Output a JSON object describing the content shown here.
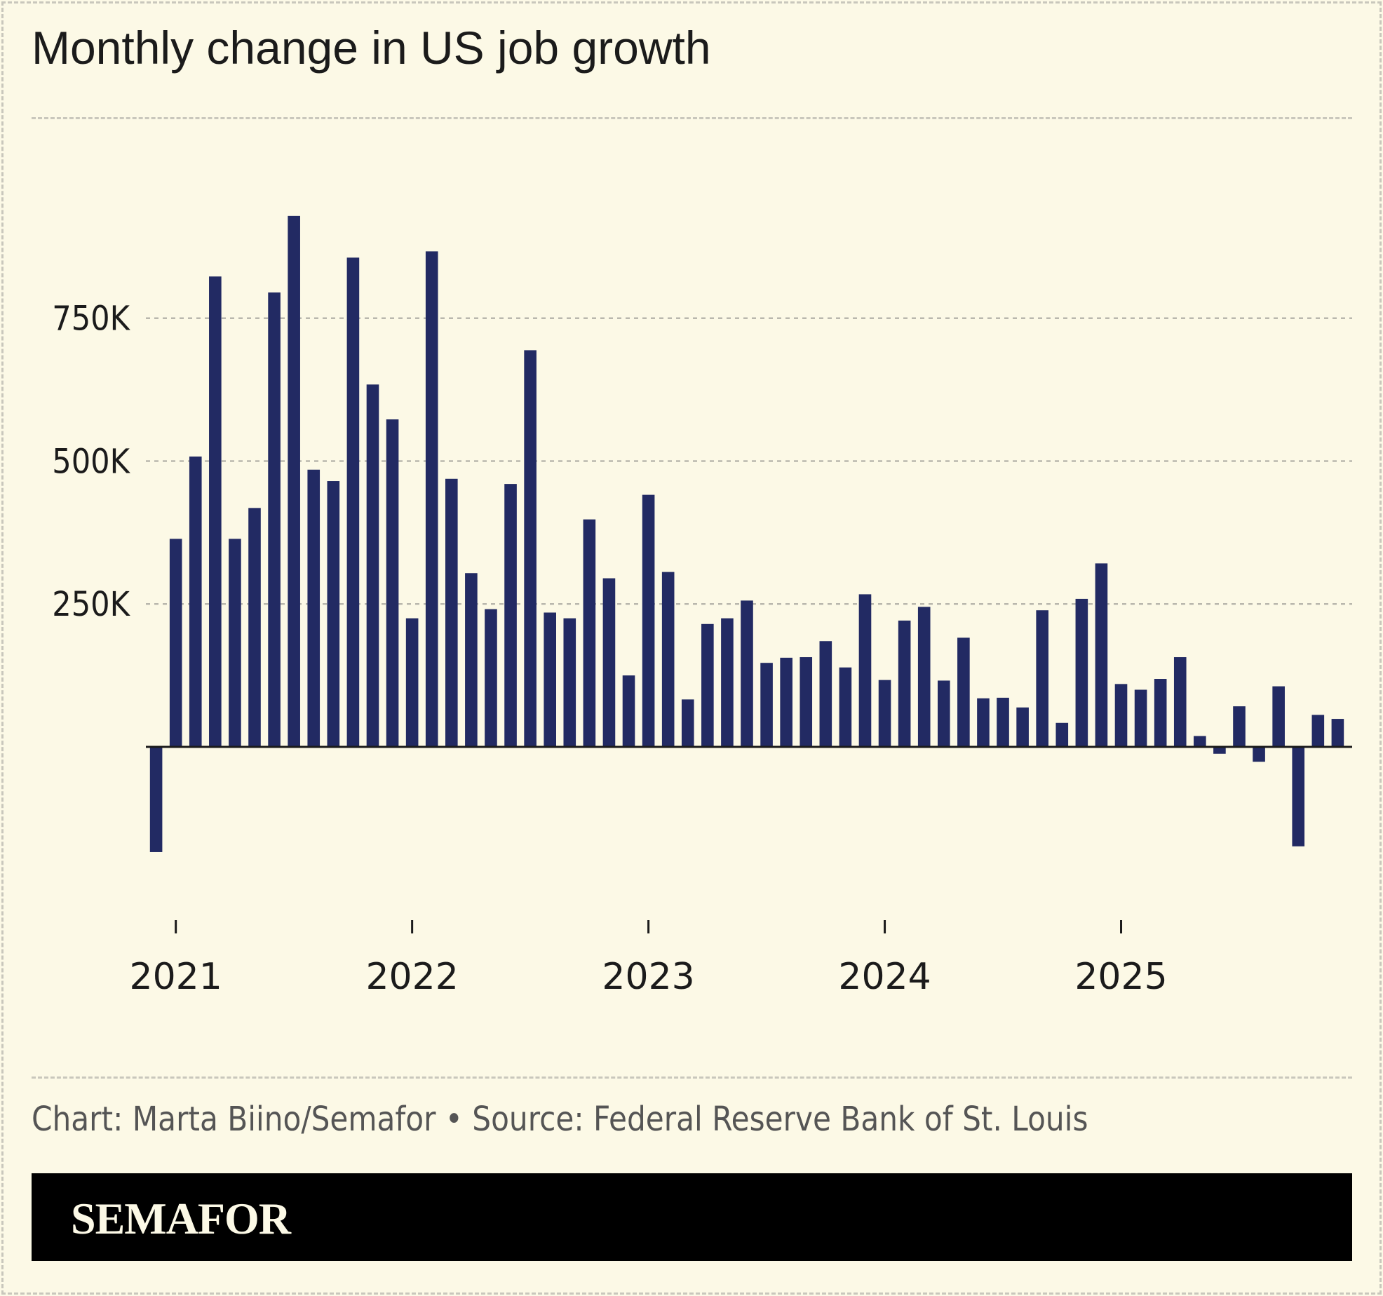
{
  "title": "Monthly change in US job growth",
  "credit": "Chart: Marta Biino/Semafor • Source: Federal Reserve Bank of St. Louis",
  "brand": "SEMAFOR",
  "chart_data": {
    "type": "bar",
    "title": "Monthly change in US job growth",
    "xlabel": "",
    "ylabel": "",
    "ylim": [
      -300,
      1000
    ],
    "grid": true,
    "bar_color": "#222a63",
    "y_ticks": [
      {
        "value": 250,
        "label": "250K"
      },
      {
        "value": 500,
        "label": "500K"
      },
      {
        "value": 750,
        "label": "750K"
      }
    ],
    "x_ticks": [
      {
        "index": 1,
        "label": "2021"
      },
      {
        "index": 13,
        "label": "2022"
      },
      {
        "index": 25,
        "label": "2023"
      },
      {
        "index": 37,
        "label": "2024"
      },
      {
        "index": 49,
        "label": "2025"
      }
    ],
    "categories": [
      "2020-12",
      "2021-01",
      "2021-02",
      "2021-03",
      "2021-04",
      "2021-05",
      "2021-06",
      "2021-07",
      "2021-08",
      "2021-09",
      "2021-10",
      "2021-11",
      "2021-12",
      "2022-01",
      "2022-02",
      "2022-03",
      "2022-04",
      "2022-05",
      "2022-06",
      "2022-07",
      "2022-08",
      "2022-09",
      "2022-10",
      "2022-11",
      "2022-12",
      "2023-01",
      "2023-02",
      "2023-03",
      "2023-04",
      "2023-05",
      "2023-06",
      "2023-07",
      "2023-08",
      "2023-09",
      "2023-10",
      "2023-11",
      "2023-12",
      "2024-01",
      "2024-02",
      "2024-03",
      "2024-04",
      "2024-05",
      "2024-06",
      "2024-07",
      "2024-08",
      "2024-09",
      "2024-10",
      "2024-11",
      "2024-12",
      "2025-01",
      "2025-02",
      "2025-03",
      "2025-04",
      "2025-05",
      "2025-06",
      "2025-07",
      "2025-08",
      "2025-09",
      "2025-10",
      "2025-11",
      "2025-12"
    ],
    "values": [
      -184,
      364,
      508,
      823,
      364,
      418,
      795,
      929,
      485,
      465,
      856,
      634,
      573,
      225,
      867,
      469,
      304,
      241,
      460,
      694,
      235,
      225,
      398,
      295,
      125,
      441,
      306,
      83,
      215,
      225,
      256,
      147,
      156,
      157,
      185,
      139,
      267,
      117,
      221,
      245,
      116,
      191,
      85,
      86,
      69,
      239,
      42,
      259,
      321,
      110,
      100,
      119,
      157,
      19,
      -12,
      71,
      -26,
      106,
      -174,
      56,
      49
    ]
  }
}
